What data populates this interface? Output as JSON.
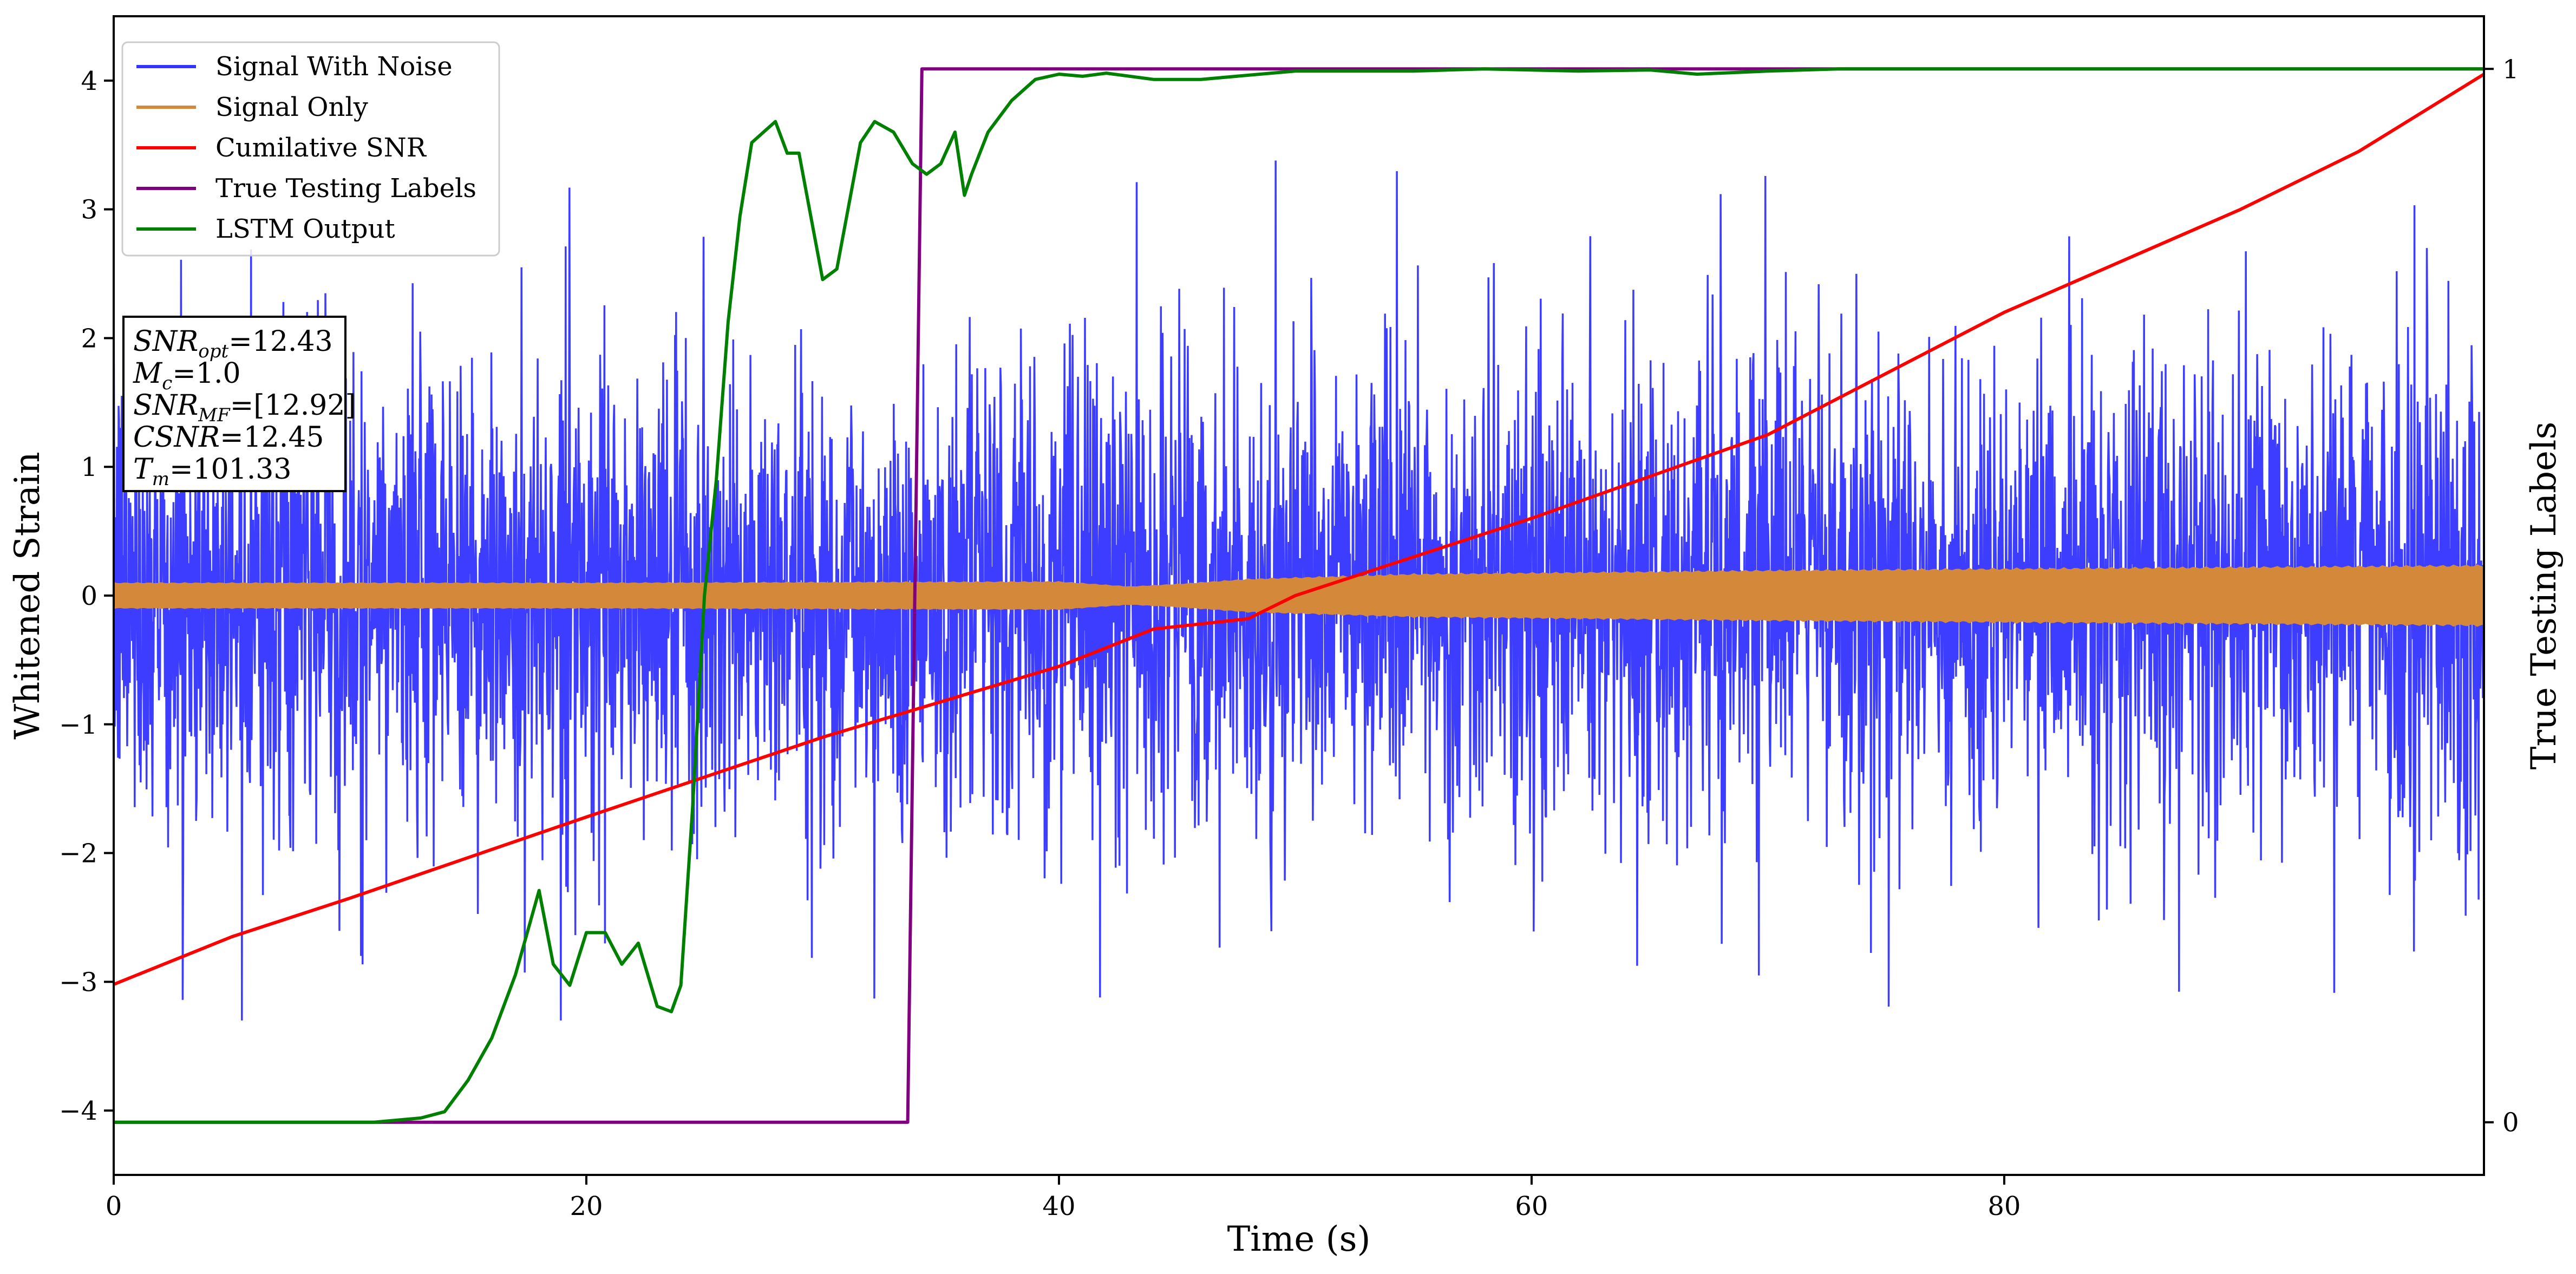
{
  "chart_data": {
    "type": "line",
    "xlabel": "Time (s)",
    "ylabel": "Whitened Strain",
    "y2label": "True Testing Labels",
    "xlim": [
      0,
      100.3
    ],
    "ylim": [
      -4.5,
      4.5
    ],
    "y2lim": [
      -0.05,
      1.05
    ],
    "xticks": [
      "0",
      "20",
      "40",
      "60",
      "80"
    ],
    "yticks": [
      "−4",
      "−3",
      "−2",
      "−1",
      "0",
      "1",
      "2",
      "3",
      "4"
    ],
    "y2ticks": [
      "0",
      "1"
    ],
    "grid": false,
    "legend": {
      "placement": "top-left",
      "entries": [
        "Signal With Noise",
        "Signal Only",
        "Cumilative SNR",
        "True Testing Labels",
        "LSTM Output"
      ]
    },
    "series": [
      {
        "name": "Signal With Noise",
        "color": "#3333ff",
        "kind": "noise",
        "band_sigma": 0.9,
        "spike_max": 3.4,
        "spike_min": -3.3
      },
      {
        "name": "Signal Only",
        "color": "#d4893a",
        "kind": "envelope",
        "x": [
          0,
          20,
          40,
          43,
          45,
          48,
          55,
          70,
          85,
          100
        ],
        "amplitude": [
          0.1,
          0.1,
          0.11,
          0.07,
          0.09,
          0.13,
          0.17,
          0.2,
          0.22,
          0.24
        ]
      },
      {
        "name": "Cumilative SNR",
        "color": "#ff0000",
        "axis": "left",
        "x": [
          0,
          5,
          10,
          20,
          30,
          40,
          44,
          48,
          50,
          60,
          70,
          80,
          90,
          95,
          100.3
        ],
        "y": [
          -3.02,
          -2.65,
          -2.35,
          -1.72,
          -1.1,
          -0.55,
          -0.26,
          -0.18,
          0.0,
          0.6,
          1.25,
          2.2,
          3.0,
          3.45,
          4.05
        ]
      },
      {
        "name": "True Testing Labels",
        "color": "#800080",
        "axis": "right",
        "x": [
          0,
          33.6,
          34.2,
          100.3
        ],
        "y": [
          0,
          0,
          1,
          1
        ]
      },
      {
        "name": "LSTM Output",
        "color": "#008000",
        "axis": "right",
        "x": [
          0,
          11,
          13,
          14,
          15,
          16,
          17,
          18,
          18.6,
          19.3,
          20,
          20.8,
          21.5,
          22.2,
          23,
          23.6,
          24,
          24.5,
          25,
          25.5,
          26,
          26.5,
          27,
          27.5,
          28,
          28.5,
          29,
          29.5,
          30,
          30.6,
          31.1,
          31.6,
          32.2,
          33,
          33.8,
          34.4,
          35,
          35.6,
          36,
          36.3,
          37,
          38,
          39,
          40,
          41,
          42,
          44,
          46,
          50,
          55,
          58,
          62,
          65,
          67,
          70,
          73,
          80,
          90,
          100.3
        ],
        "y": [
          0,
          0,
          0.004,
          0.01,
          0.04,
          0.08,
          0.14,
          0.22,
          0.15,
          0.13,
          0.18,
          0.18,
          0.15,
          0.17,
          0.11,
          0.105,
          0.13,
          0.3,
          0.5,
          0.61,
          0.76,
          0.86,
          0.93,
          0.94,
          0.95,
          0.92,
          0.92,
          0.86,
          0.8,
          0.81,
          0.87,
          0.93,
          0.95,
          0.94,
          0.91,
          0.9,
          0.91,
          0.94,
          0.88,
          0.9,
          0.94,
          0.97,
          0.99,
          0.995,
          0.993,
          0.996,
          0.99,
          0.99,
          0.998,
          0.998,
          1.0,
          0.998,
          0.999,
          0.995,
          0.998,
          1.0,
          1.0,
          1.0,
          1.0
        ]
      }
    ],
    "annotation": {
      "placement": "upper-left",
      "lines": [
        {
          "name": "SNR",
          "sub": "opt",
          "text": "=12.43"
        },
        {
          "name": "M",
          "sub": "c",
          "text": "=1.0"
        },
        {
          "name": "SNR",
          "sub": "MF",
          "text": "=[12.92]"
        },
        {
          "name": "CSNR",
          "sub": "",
          "text": "=12.45"
        },
        {
          "name": "T",
          "sub": "m",
          "text": "=101.33"
        }
      ]
    }
  }
}
